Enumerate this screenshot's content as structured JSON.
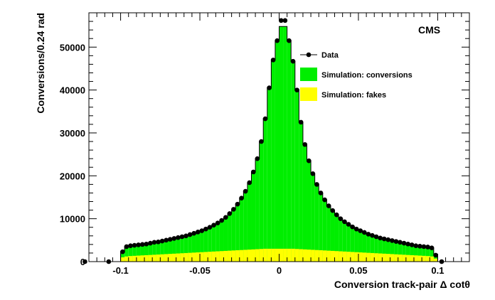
{
  "chart_data": {
    "type": "bar",
    "xlabel": "Conversion track-pair Δ cotθ",
    "ylabel": "Conversions/0.24 rad",
    "annotation": "CMS",
    "xlim": [
      -0.12,
      0.12
    ],
    "ylim": [
      0,
      58000
    ],
    "x_ticks": [
      -0.1,
      -0.05,
      0,
      0.05,
      0.1
    ],
    "x_tick_labels": [
      "-0.1",
      "-0.05",
      "0",
      "0.05",
      "0.1"
    ],
    "y_ticks": [
      0,
      10000,
      20000,
      30000,
      40000,
      50000
    ],
    "y_tick_labels": [
      "0",
      "10000",
      "20000",
      "30000",
      "40000",
      "50000"
    ],
    "legend_position": "top-right",
    "bin_edges_range": [
      -0.1,
      0.1
    ],
    "series": [
      {
        "name": "Data",
        "style": "points",
        "color": "#000000",
        "values": [
          2300,
          3500,
          3700,
          3800,
          3900,
          4000,
          4100,
          4300,
          4500,
          4600,
          4800,
          5000,
          5200,
          5400,
          5600,
          5800,
          6000,
          6300,
          6600,
          6900,
          7200,
          7600,
          8000,
          8500,
          9000,
          9600,
          10300,
          11200,
          12200,
          13400,
          14800,
          16400,
          18400,
          20900,
          24000,
          28000,
          33300,
          40500,
          47000,
          51500,
          56200,
          56200,
          51500,
          46700,
          40000,
          32500,
          27300,
          23500,
          20500,
          18000,
          16000,
          14400,
          13000,
          11900,
          10900,
          10000,
          9300,
          8700,
          8100,
          7600,
          7200,
          6800,
          6400,
          6100,
          5800,
          5500,
          5300,
          5100,
          4900,
          4700,
          4500,
          4300,
          4100,
          3900,
          3700,
          3600,
          3500,
          3400,
          3200,
          1500
        ],
        "extra_points": [
          {
            "x": -0.1225,
            "y": 0
          },
          {
            "x": -0.1075,
            "y": 0
          },
          {
            "x": 0.1025,
            "y": 0
          }
        ]
      },
      {
        "name": "Simulation: conversions",
        "style": "filled-histogram",
        "color": "#00ee00",
        "values": [
          2300,
          3500,
          3700,
          3800,
          3900,
          4000,
          4100,
          4300,
          4500,
          4600,
          4800,
          5000,
          5200,
          5400,
          5600,
          5800,
          6000,
          6300,
          6600,
          6900,
          7200,
          7600,
          8000,
          8500,
          9000,
          9600,
          10300,
          11200,
          12200,
          13400,
          14800,
          16400,
          18400,
          20900,
          24000,
          28000,
          33300,
          40500,
          47000,
          51500,
          54800,
          54800,
          51500,
          46700,
          40000,
          32500,
          27300,
          23500,
          20500,
          18000,
          16000,
          14400,
          13000,
          11900,
          10900,
          10000,
          9300,
          8700,
          8100,
          7600,
          7200,
          6800,
          6400,
          6100,
          5800,
          5500,
          5300,
          5100,
          4900,
          4700,
          4500,
          4300,
          4100,
          3900,
          3700,
          3600,
          3500,
          3400,
          3200,
          1500
        ]
      },
      {
        "name": "Simulation: fakes",
        "style": "filled-histogram",
        "color": "#ffff00",
        "values": [
          1000,
          1200,
          1300,
          1350,
          1400,
          1450,
          1500,
          1550,
          1600,
          1650,
          1700,
          1750,
          1800,
          1850,
          1900,
          1950,
          2000,
          2050,
          2100,
          2150,
          2200,
          2250,
          2300,
          2350,
          2400,
          2450,
          2500,
          2550,
          2600,
          2650,
          2700,
          2750,
          2800,
          2850,
          2900,
          2950,
          3000,
          3000,
          3000,
          3000,
          3000,
          3000,
          3000,
          3000,
          2950,
          2900,
          2850,
          2800,
          2750,
          2700,
          2650,
          2600,
          2550,
          2500,
          2450,
          2400,
          2350,
          2300,
          2250,
          2200,
          2150,
          2100,
          2050,
          2000,
          1950,
          1900,
          1850,
          1800,
          1750,
          1700,
          1650,
          1600,
          1550,
          1500,
          1450,
          1400,
          1350,
          1300,
          1200,
          700
        ]
      }
    ]
  }
}
